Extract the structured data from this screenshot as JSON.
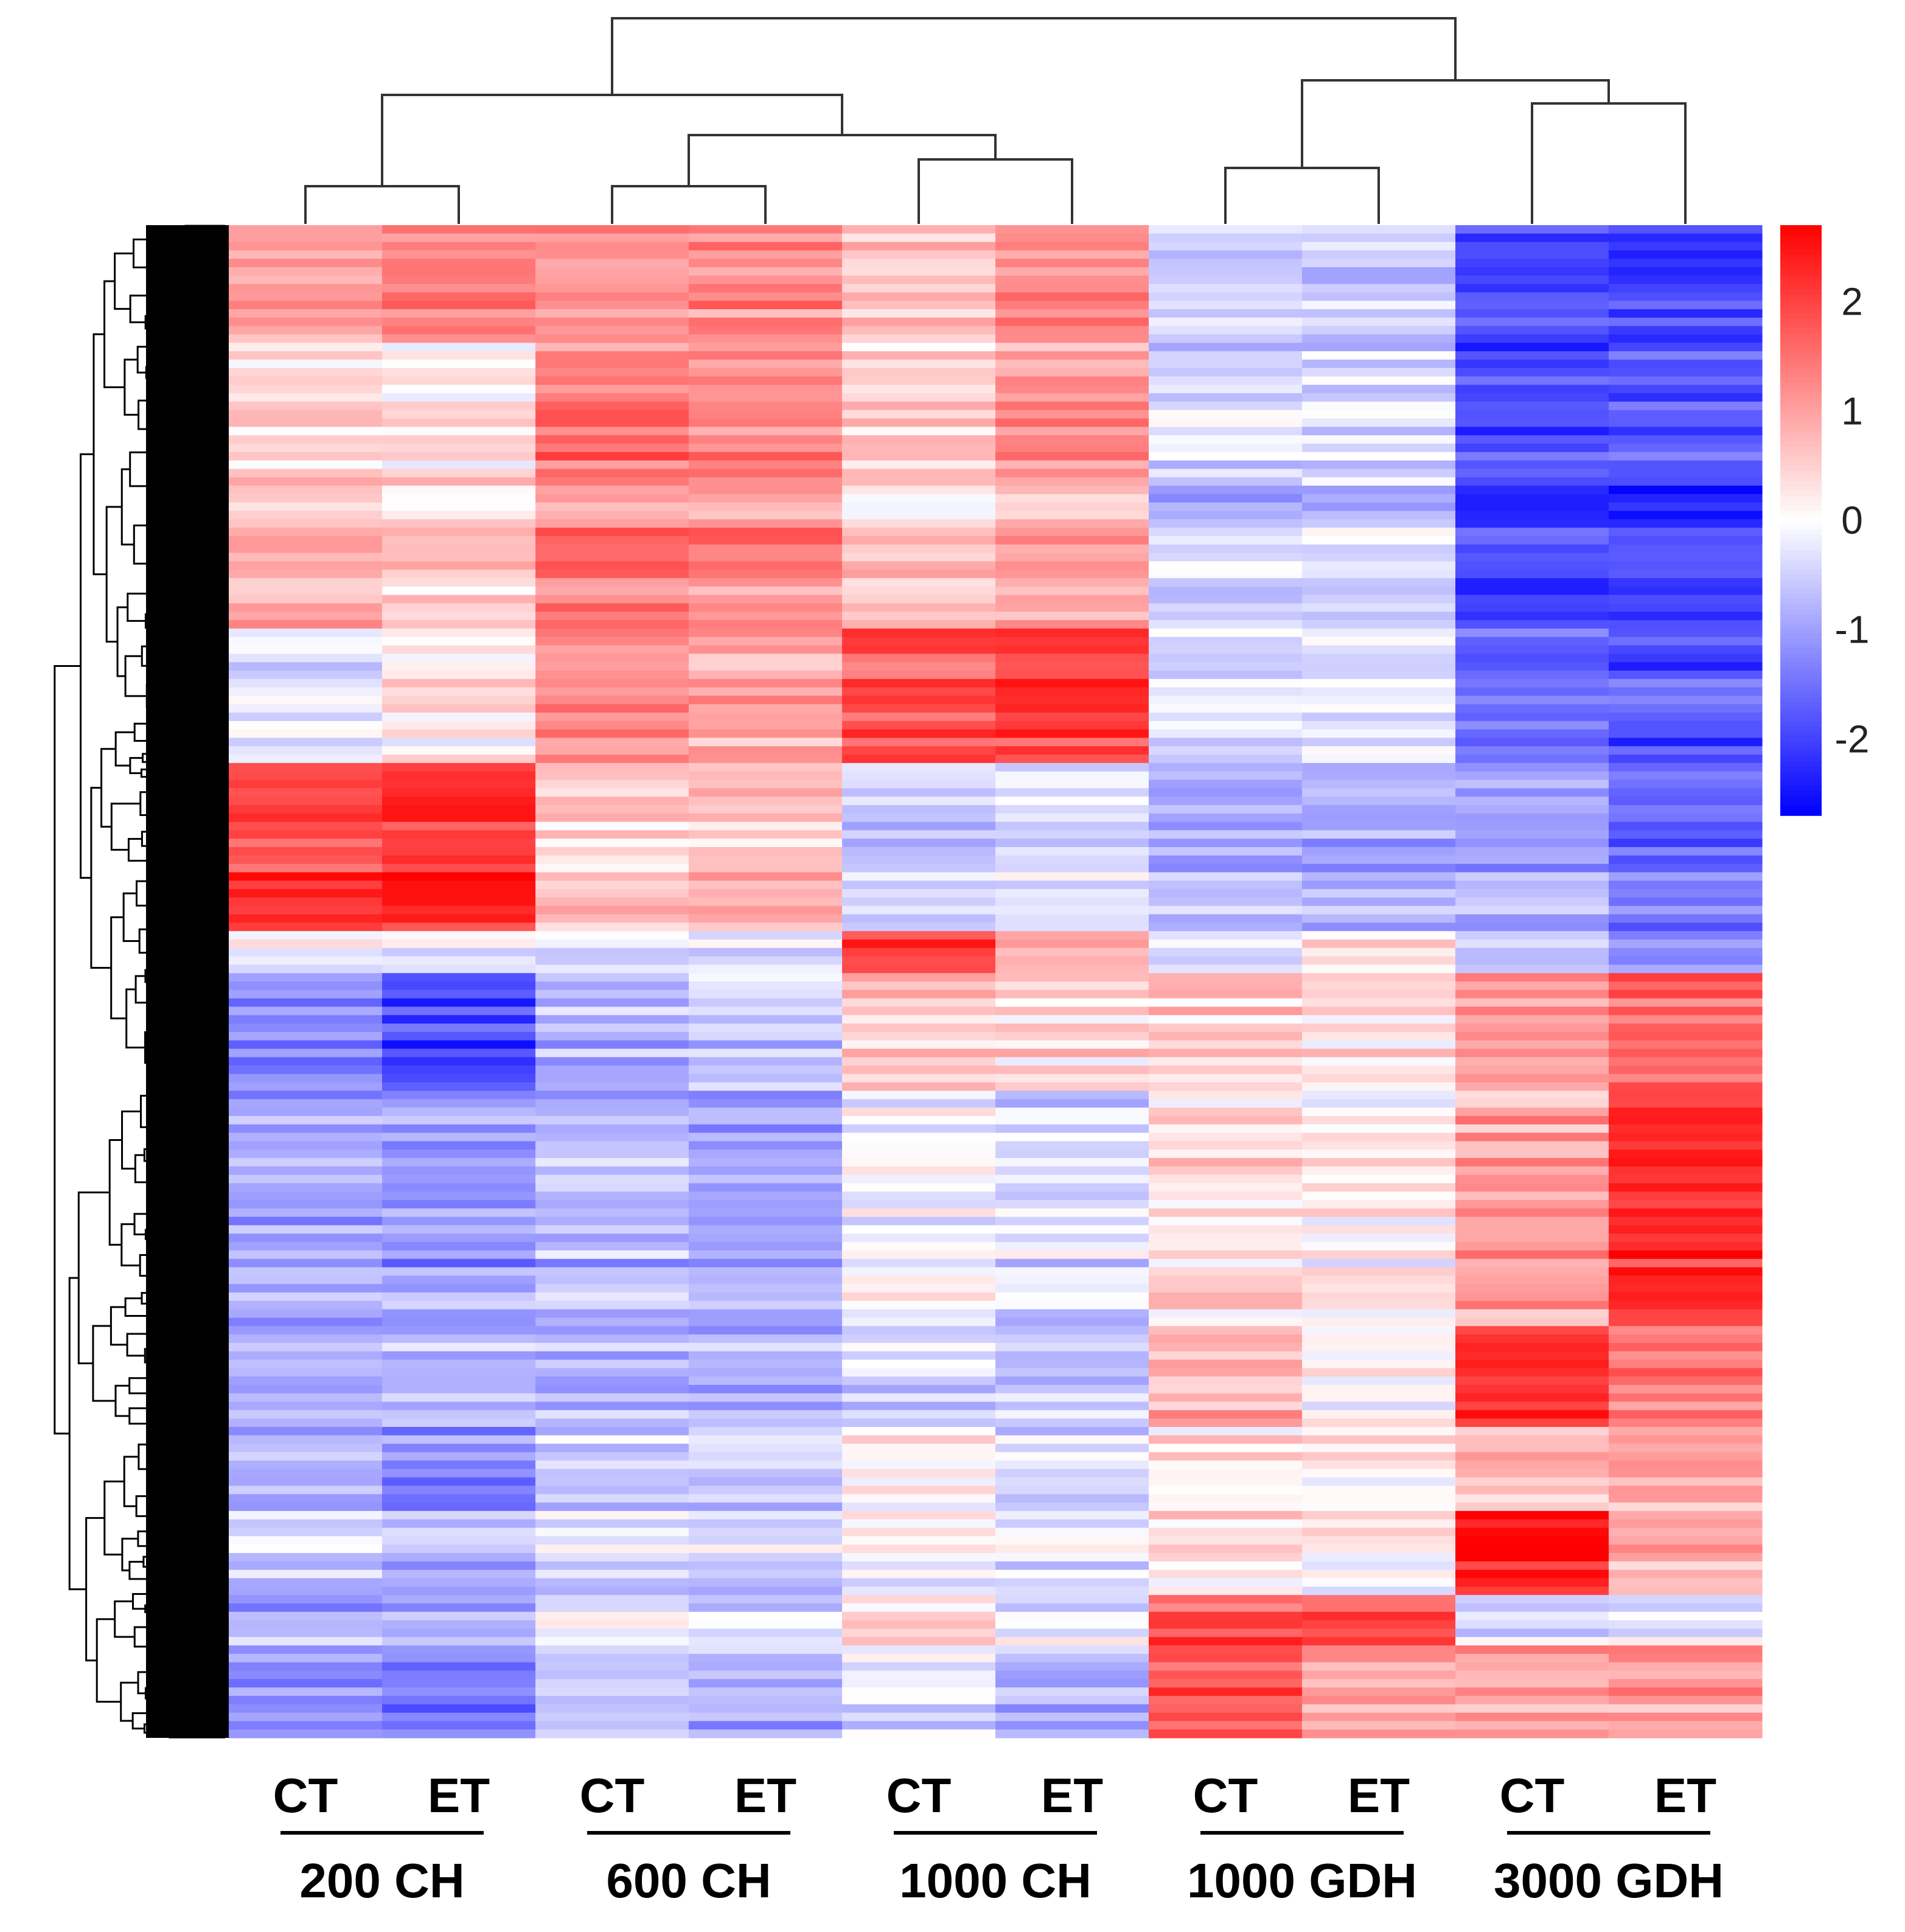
{
  "chart_data": {
    "type": "heatmap",
    "title": "",
    "columns": [
      {
        "group": "200 CH",
        "sample": "CT"
      },
      {
        "group": "200 CH",
        "sample": "ET"
      },
      {
        "group": "600 CH",
        "sample": "CT"
      },
      {
        "group": "600 CH",
        "sample": "ET"
      },
      {
        "group": "1000 CH",
        "sample": "CT"
      },
      {
        "group": "1000 CH",
        "sample": "ET"
      },
      {
        "group": "1000 GDH",
        "sample": "CT"
      },
      {
        "group": "1000 GDH",
        "sample": "ET"
      },
      {
        "group": "3000 GDH",
        "sample": "CT"
      },
      {
        "group": "3000 GDH",
        "sample": "ET"
      }
    ],
    "groups": [
      "200 CH",
      "600 CH",
      "1000 CH",
      "1000 GDH",
      "3000 GDH"
    ],
    "color_scale": {
      "min": -2.7,
      "max": 2.7,
      "low_color": "#0000ff",
      "mid_color": "#ffffff",
      "high_color": "#ff0000",
      "ticks": [
        2,
        1,
        0,
        -1,
        -2
      ],
      "tick_labels": [
        "2",
        "1",
        "0",
        "-1",
        "-2"
      ]
    },
    "row_blocks": [
      {
        "rows": 14,
        "values": [
          1.0,
          1.3,
          1.1,
          1.2,
          0.6,
          1.2,
          -0.6,
          -0.6,
          -1.9,
          -2.1
        ]
      },
      {
        "rows": 16,
        "values": [
          0.3,
          0.2,
          1.4,
          1.3,
          0.4,
          1.1,
          -0.4,
          -0.4,
          -1.9,
          -1.8
        ]
      },
      {
        "rows": 18,
        "values": [
          0.8,
          0.5,
          1.3,
          1.3,
          0.5,
          1.0,
          -0.6,
          -0.5,
          -2.0,
          -2.0
        ]
      },
      {
        "rows": 16,
        "values": [
          -0.4,
          0.1,
          1.1,
          0.8,
          1.7,
          1.9,
          -0.5,
          -0.3,
          -1.7,
          -1.9
        ]
      },
      {
        "rows": 20,
        "values": [
          2.0,
          2.2,
          0.5,
          0.7,
          -0.5,
          -0.4,
          -0.9,
          -0.9,
          -1.0,
          -1.6
        ]
      },
      {
        "rows": 5,
        "values": [
          -0.3,
          -0.3,
          -0.3,
          -0.5,
          1.8,
          0.9,
          -0.5,
          0.2,
          -0.8,
          -1.3
        ]
      },
      {
        "rows": 14,
        "values": [
          -1.3,
          -2.0,
          -0.8,
          -0.6,
          0.6,
          0.4,
          0.5,
          0.3,
          1.0,
          1.6
        ]
      },
      {
        "rows": 28,
        "values": [
          -1.0,
          -1.1,
          -0.8,
          -1.0,
          -0.1,
          -0.5,
          0.3,
          0.1,
          0.9,
          2.2
        ]
      },
      {
        "rows": 12,
        "values": [
          -0.8,
          -0.8,
          -0.8,
          -0.8,
          -0.4,
          -0.6,
          0.8,
          0.1,
          2.2,
          1.5
        ]
      },
      {
        "rows": 10,
        "values": [
          -0.7,
          -1.1,
          -0.5,
          -0.4,
          0.2,
          -0.3,
          0.3,
          0.3,
          0.7,
          1.0
        ]
      },
      {
        "rows": 10,
        "values": [
          -0.4,
          -0.6,
          -0.3,
          -0.4,
          0.0,
          -0.2,
          0.4,
          0.2,
          2.6,
          1.0
        ]
      },
      {
        "rows": 6,
        "values": [
          -0.8,
          -0.9,
          -0.2,
          -0.5,
          0.4,
          -0.3,
          1.8,
          1.9,
          -0.5,
          -0.4
        ]
      },
      {
        "rows": 11,
        "values": [
          -1.2,
          -1.4,
          -0.6,
          -0.8,
          -0.3,
          -0.8,
          1.7,
          1.0,
          0.9,
          1.0
        ]
      }
    ]
  }
}
